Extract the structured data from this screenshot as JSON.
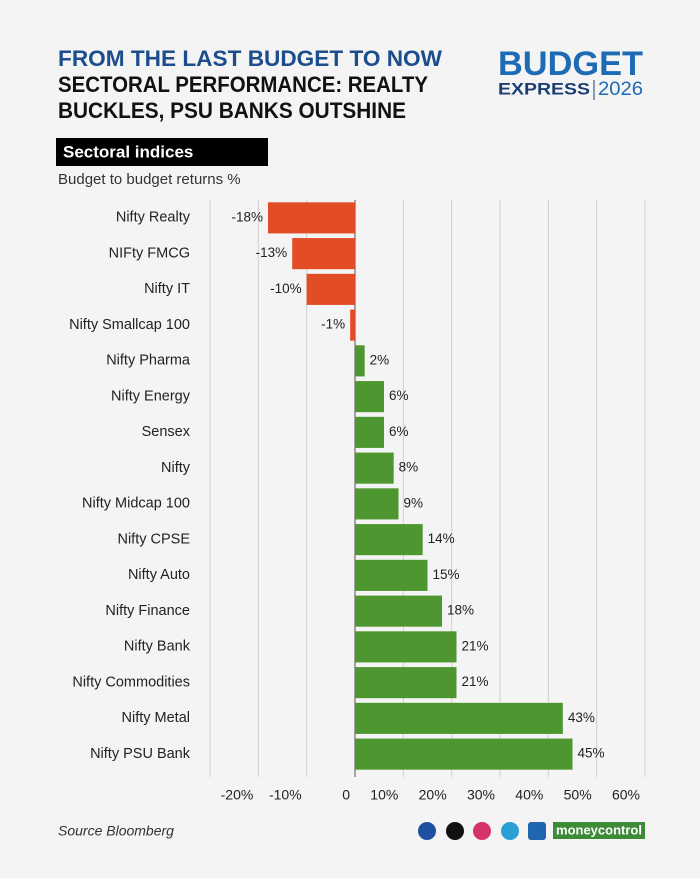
{
  "header": {
    "kicker": "FROM THE LAST BUDGET TO NOW",
    "title_lines": [
      "SECTORAL PERFORMANCE: REALTY",
      "BUCKLES, PSU BANKS OUTSHINE"
    ],
    "logo": {
      "top": "BUDGET",
      "middle": "EXPRESS",
      "year": "2026"
    }
  },
  "chart_data": {
    "type": "barh",
    "title": "Sectoral indices",
    "subtitle": "Budget to budget returns %",
    "categories": [
      "Nifty Realty",
      "NIFty FMCG",
      "Nifty IT",
      "Nifty Smallcap 100",
      "Nifty Pharma",
      "Nifty Energy",
      "Sensex",
      "Nifty",
      "Nifty Midcap 100",
      "Nifty CPSE",
      "Nifty Auto",
      "Nifty Finance",
      "Nifty Bank",
      "Nifty Commodities",
      "Nifty Metal",
      "Nifty PSU Bank"
    ],
    "values": [
      -18,
      -13,
      -10,
      -1,
      2,
      6,
      6,
      8,
      9,
      14,
      15,
      18,
      21,
      21,
      43,
      45
    ],
    "value_labels": [
      "-18%",
      "-13%",
      "-10%",
      "-1%",
      "2%",
      "6%",
      "6%",
      "8%",
      "9%",
      "14%",
      "15%",
      "18%",
      "21%",
      "21%",
      "43%",
      "45%"
    ],
    "negative_color": "#e34d26",
    "positive_color": "#4e962f",
    "xlim": [
      -30,
      60
    ],
    "xticks": [
      {
        "value": -20,
        "label": "-20%"
      },
      {
        "value": -10,
        "label": "-10%"
      },
      0,
      {
        "value": 10,
        "label": "10%"
      },
      {
        "value": 20,
        "label": "20%"
      },
      {
        "value": 30,
        "label": "30%"
      },
      {
        "value": 40,
        "label": "40%"
      },
      {
        "value": 50,
        "label": "50%"
      },
      {
        "value": 60,
        "label": "60%"
      }
    ],
    "grid": true
  },
  "footer": {
    "source": "Source Bloomberg",
    "brand": "moneycontrol"
  }
}
